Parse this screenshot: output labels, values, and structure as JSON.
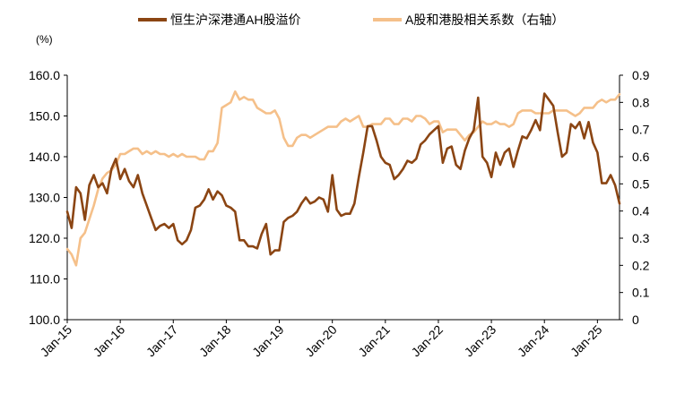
{
  "chart_data": {
    "type": "line",
    "unit_label": "(%)",
    "legend_position": "top",
    "grid": false,
    "x_ticks": [
      "Jan-15",
      "Jan-16",
      "Jan-17",
      "Jan-18",
      "Jan-19",
      "Jan-20",
      "Jan-21",
      "Jan-22",
      "Jan-23",
      "Jan-24",
      "Jan-25"
    ],
    "x_range": [
      "2015-01",
      "2025-06"
    ],
    "y_left": {
      "ticks": [
        "100.0",
        "110.0",
        "120.0",
        "130.0",
        "140.0",
        "150.0",
        "160.0"
      ],
      "range": [
        100,
        160
      ]
    },
    "y_right": {
      "ticks": [
        "0",
        "0.1",
        "0.2",
        "0.3",
        "0.4",
        "0.5",
        "0.6",
        "0.7",
        "0.8",
        "0.9"
      ],
      "range": [
        0,
        0.9
      ]
    },
    "series": [
      {
        "name": "恒生沪深港通AH股溢价",
        "axis": "left",
        "color": "#8B4513",
        "points": [
          [
            "2015-01",
            126.5
          ],
          [
            "2015-02",
            122.5
          ],
          [
            "2015-03",
            132.5
          ],
          [
            "2015-04",
            131.0
          ],
          [
            "2015-05",
            124.5
          ],
          [
            "2015-06",
            133.0
          ],
          [
            "2015-07",
            135.5
          ],
          [
            "2015-08",
            132.5
          ],
          [
            "2015-09",
            133.5
          ],
          [
            "2015-10",
            131.0
          ],
          [
            "2015-11",
            137.0
          ],
          [
            "2015-12",
            139.5
          ],
          [
            "2016-01",
            134.5
          ],
          [
            "2016-02",
            137.0
          ],
          [
            "2016-03",
            134.0
          ],
          [
            "2016-04",
            132.5
          ],
          [
            "2016-05",
            135.5
          ],
          [
            "2016-06",
            131.0
          ],
          [
            "2016-07",
            128.0
          ],
          [
            "2016-08",
            125.0
          ],
          [
            "2016-09",
            122.0
          ],
          [
            "2016-10",
            123.0
          ],
          [
            "2016-11",
            123.5
          ],
          [
            "2016-12",
            122.5
          ],
          [
            "2017-01",
            123.5
          ],
          [
            "2017-02",
            119.5
          ],
          [
            "2017-03",
            118.5
          ],
          [
            "2017-04",
            119.5
          ],
          [
            "2017-05",
            122.0
          ],
          [
            "2017-06",
            127.5
          ],
          [
            "2017-07",
            128.0
          ],
          [
            "2017-08",
            129.5
          ],
          [
            "2017-09",
            132.0
          ],
          [
            "2017-10",
            129.5
          ],
          [
            "2017-11",
            131.5
          ],
          [
            "2017-12",
            130.5
          ],
          [
            "2018-01",
            128.0
          ],
          [
            "2018-02",
            127.5
          ],
          [
            "2018-03",
            126.5
          ],
          [
            "2018-04",
            119.5
          ],
          [
            "2018-05",
            119.5
          ],
          [
            "2018-06",
            118.0
          ],
          [
            "2018-07",
            118.0
          ],
          [
            "2018-08",
            117.5
          ],
          [
            "2018-09",
            121.0
          ],
          [
            "2018-10",
            123.5
          ],
          [
            "2018-11",
            116.0
          ],
          [
            "2018-12",
            117.0
          ],
          [
            "2019-01",
            117.0
          ],
          [
            "2019-02",
            124.0
          ],
          [
            "2019-03",
            125.0
          ],
          [
            "2019-04",
            125.5
          ],
          [
            "2019-05",
            126.5
          ],
          [
            "2019-06",
            128.5
          ],
          [
            "2019-07",
            130.0
          ],
          [
            "2019-08",
            128.5
          ],
          [
            "2019-09",
            129.0
          ],
          [
            "2019-10",
            130.0
          ],
          [
            "2019-11",
            129.5
          ],
          [
            "2019-12",
            126.5
          ],
          [
            "2020-01",
            135.5
          ],
          [
            "2020-02",
            127.0
          ],
          [
            "2020-03",
            125.5
          ],
          [
            "2020-04",
            126.0
          ],
          [
            "2020-05",
            126.0
          ],
          [
            "2020-06",
            128.5
          ],
          [
            "2020-07",
            135.0
          ],
          [
            "2020-08",
            141.0
          ],
          [
            "2020-09",
            147.5
          ],
          [
            "2020-10",
            147.5
          ],
          [
            "2020-11",
            144.0
          ],
          [
            "2020-12",
            140.0
          ],
          [
            "2021-01",
            138.5
          ],
          [
            "2021-02",
            138.0
          ],
          [
            "2021-03",
            134.5
          ],
          [
            "2021-04",
            135.5
          ],
          [
            "2021-05",
            137.0
          ],
          [
            "2021-06",
            139.0
          ],
          [
            "2021-07",
            138.5
          ],
          [
            "2021-08",
            139.5
          ],
          [
            "2021-09",
            143.0
          ],
          [
            "2021-10",
            144.0
          ],
          [
            "2021-11",
            145.5
          ],
          [
            "2021-12",
            146.5
          ],
          [
            "2022-01",
            147.5
          ],
          [
            "2022-02",
            138.5
          ],
          [
            "2022-03",
            142.0
          ],
          [
            "2022-04",
            142.5
          ],
          [
            "2022-05",
            138.0
          ],
          [
            "2022-06",
            137.0
          ],
          [
            "2022-07",
            141.5
          ],
          [
            "2022-08",
            144.5
          ],
          [
            "2022-09",
            146.5
          ],
          [
            "2022-10",
            154.5
          ],
          [
            "2022-11",
            140.0
          ],
          [
            "2022-12",
            138.5
          ],
          [
            "2023-01",
            135.0
          ],
          [
            "2023-02",
            141.0
          ],
          [
            "2023-03",
            138.0
          ],
          [
            "2023-04",
            141.0
          ],
          [
            "2023-05",
            142.0
          ],
          [
            "2023-06",
            137.5
          ],
          [
            "2023-07",
            141.5
          ],
          [
            "2023-08",
            145.0
          ],
          [
            "2023-09",
            144.5
          ],
          [
            "2023-10",
            146.5
          ],
          [
            "2023-11",
            149.0
          ],
          [
            "2023-12",
            146.5
          ],
          [
            "2024-01",
            155.5
          ],
          [
            "2024-02",
            154.0
          ],
          [
            "2024-03",
            152.5
          ],
          [
            "2024-04",
            146.0
          ],
          [
            "2024-05",
            140.0
          ],
          [
            "2024-06",
            141.0
          ],
          [
            "2024-07",
            148.0
          ],
          [
            "2024-08",
            147.0
          ],
          [
            "2024-09",
            148.5
          ],
          [
            "2024-10",
            144.5
          ],
          [
            "2024-11",
            148.5
          ],
          [
            "2024-12",
            143.5
          ],
          [
            "2025-01",
            141.0
          ],
          [
            "2025-02",
            133.5
          ],
          [
            "2025-03",
            133.5
          ],
          [
            "2025-04",
            135.5
          ],
          [
            "2025-05",
            133.0
          ],
          [
            "2025-06",
            128.5
          ]
        ]
      },
      {
        "name": "A股和港股相关系数（右轴）",
        "axis": "right",
        "color": "#F5C08A",
        "points": [
          [
            "2015-01",
            0.26
          ],
          [
            "2015-02",
            0.24
          ],
          [
            "2015-03",
            0.2
          ],
          [
            "2015-04",
            0.3
          ],
          [
            "2015-05",
            0.32
          ],
          [
            "2015-06",
            0.37
          ],
          [
            "2015-07",
            0.42
          ],
          [
            "2015-08",
            0.48
          ],
          [
            "2015-09",
            0.52
          ],
          [
            "2015-10",
            0.54
          ],
          [
            "2015-11",
            0.55
          ],
          [
            "2015-12",
            0.57
          ],
          [
            "2016-01",
            0.61
          ],
          [
            "2016-02",
            0.61
          ],
          [
            "2016-03",
            0.62
          ],
          [
            "2016-04",
            0.63
          ],
          [
            "2016-05",
            0.63
          ],
          [
            "2016-06",
            0.61
          ],
          [
            "2016-07",
            0.62
          ],
          [
            "2016-08",
            0.61
          ],
          [
            "2016-09",
            0.62
          ],
          [
            "2016-10",
            0.61
          ],
          [
            "2016-11",
            0.61
          ],
          [
            "2016-12",
            0.6
          ],
          [
            "2017-01",
            0.61
          ],
          [
            "2017-02",
            0.6
          ],
          [
            "2017-03",
            0.61
          ],
          [
            "2017-04",
            0.6
          ],
          [
            "2017-05",
            0.6
          ],
          [
            "2017-06",
            0.6
          ],
          [
            "2017-07",
            0.59
          ],
          [
            "2017-08",
            0.59
          ],
          [
            "2017-09",
            0.62
          ],
          [
            "2017-10",
            0.62
          ],
          [
            "2017-11",
            0.65
          ],
          [
            "2017-12",
            0.78
          ],
          [
            "2018-01",
            0.79
          ],
          [
            "2018-02",
            0.8
          ],
          [
            "2018-03",
            0.84
          ],
          [
            "2018-04",
            0.81
          ],
          [
            "2018-05",
            0.82
          ],
          [
            "2018-06",
            0.81
          ],
          [
            "2018-07",
            0.81
          ],
          [
            "2018-08",
            0.78
          ],
          [
            "2018-09",
            0.77
          ],
          [
            "2018-10",
            0.76
          ],
          [
            "2018-11",
            0.76
          ],
          [
            "2018-12",
            0.77
          ],
          [
            "2019-01",
            0.74
          ],
          [
            "2019-02",
            0.67
          ],
          [
            "2019-03",
            0.64
          ],
          [
            "2019-04",
            0.64
          ],
          [
            "2019-05",
            0.67
          ],
          [
            "2019-06",
            0.68
          ],
          [
            "2019-07",
            0.68
          ],
          [
            "2019-08",
            0.67
          ],
          [
            "2019-09",
            0.68
          ],
          [
            "2019-10",
            0.69
          ],
          [
            "2019-11",
            0.7
          ],
          [
            "2019-12",
            0.71
          ],
          [
            "2020-01",
            0.71
          ],
          [
            "2020-02",
            0.71
          ],
          [
            "2020-03",
            0.73
          ],
          [
            "2020-04",
            0.74
          ],
          [
            "2020-05",
            0.73
          ],
          [
            "2020-06",
            0.74
          ],
          [
            "2020-07",
            0.75
          ],
          [
            "2020-08",
            0.71
          ],
          [
            "2020-09",
            0.71
          ],
          [
            "2020-10",
            0.72
          ],
          [
            "2020-11",
            0.72
          ],
          [
            "2020-12",
            0.72
          ],
          [
            "2021-01",
            0.74
          ],
          [
            "2021-02",
            0.74
          ],
          [
            "2021-03",
            0.72
          ],
          [
            "2021-04",
            0.72
          ],
          [
            "2021-05",
            0.74
          ],
          [
            "2021-06",
            0.74
          ],
          [
            "2021-07",
            0.73
          ],
          [
            "2021-08",
            0.75
          ],
          [
            "2021-09",
            0.75
          ],
          [
            "2021-10",
            0.74
          ],
          [
            "2021-11",
            0.72
          ],
          [
            "2021-12",
            0.73
          ],
          [
            "2022-01",
            0.73
          ],
          [
            "2022-02",
            0.69
          ],
          [
            "2022-03",
            0.7
          ],
          [
            "2022-04",
            0.7
          ],
          [
            "2022-05",
            0.7
          ],
          [
            "2022-06",
            0.68
          ],
          [
            "2022-07",
            0.66
          ],
          [
            "2022-08",
            0.68
          ],
          [
            "2022-09",
            0.69
          ],
          [
            "2022-10",
            0.71
          ],
          [
            "2022-11",
            0.73
          ],
          [
            "2022-12",
            0.72
          ],
          [
            "2023-01",
            0.72
          ],
          [
            "2023-02",
            0.73
          ],
          [
            "2023-03",
            0.72
          ],
          [
            "2023-04",
            0.72
          ],
          [
            "2023-05",
            0.71
          ],
          [
            "2023-06",
            0.72
          ],
          [
            "2023-07",
            0.76
          ],
          [
            "2023-08",
            0.77
          ],
          [
            "2023-09",
            0.77
          ],
          [
            "2023-10",
            0.77
          ],
          [
            "2023-11",
            0.76
          ],
          [
            "2023-12",
            0.76
          ],
          [
            "2024-01",
            0.76
          ],
          [
            "2024-02",
            0.76
          ],
          [
            "2024-03",
            0.77
          ],
          [
            "2024-04",
            0.77
          ],
          [
            "2024-05",
            0.77
          ],
          [
            "2024-06",
            0.77
          ],
          [
            "2024-07",
            0.76
          ],
          [
            "2024-08",
            0.75
          ],
          [
            "2024-09",
            0.76
          ],
          [
            "2024-10",
            0.78
          ],
          [
            "2024-11",
            0.78
          ],
          [
            "2024-12",
            0.78
          ],
          [
            "2025-01",
            0.8
          ],
          [
            "2025-02",
            0.81
          ],
          [
            "2025-03",
            0.8
          ],
          [
            "2025-04",
            0.81
          ],
          [
            "2025-05",
            0.81
          ],
          [
            "2025-06",
            0.83
          ]
        ]
      }
    ]
  }
}
